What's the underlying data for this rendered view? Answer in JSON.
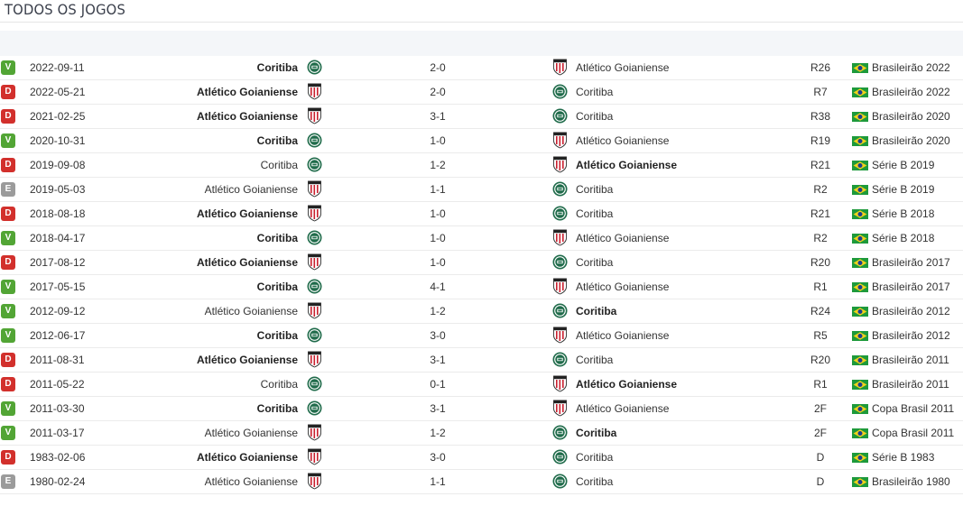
{
  "page": {
    "title": "TODOS OS JOGOS"
  },
  "colors": {
    "win": "#52a535",
    "loss": "#d2302c",
    "draw": "#9b9b9b",
    "coritiba": "#1f6b4a",
    "atletico": "#c8202f"
  },
  "matches": [
    {
      "result": "V",
      "date": "2022-09-11",
      "home": "Coritiba",
      "score": "2-0",
      "away": "Atlético Goianiense",
      "round": "R26",
      "competition": "Brasileirão 2022"
    },
    {
      "result": "D",
      "date": "2022-05-21",
      "home": "Atlético Goianiense",
      "score": "2-0",
      "away": "Coritiba",
      "round": "R7",
      "competition": "Brasileirão 2022"
    },
    {
      "result": "D",
      "date": "2021-02-25",
      "home": "Atlético Goianiense",
      "score": "3-1",
      "away": "Coritiba",
      "round": "R38",
      "competition": "Brasileirão 2020"
    },
    {
      "result": "V",
      "date": "2020-10-31",
      "home": "Coritiba",
      "score": "1-0",
      "away": "Atlético Goianiense",
      "round": "R19",
      "competition": "Brasileirão 2020"
    },
    {
      "result": "D",
      "date": "2019-09-08",
      "home": "Coritiba",
      "score": "1-2",
      "away": "Atlético Goianiense",
      "round": "R21",
      "competition": "Série B 2019"
    },
    {
      "result": "E",
      "date": "2019-05-03",
      "home": "Atlético Goianiense",
      "score": "1-1",
      "away": "Coritiba",
      "round": "R2",
      "competition": "Série B 2019"
    },
    {
      "result": "D",
      "date": "2018-08-18",
      "home": "Atlético Goianiense",
      "score": "1-0",
      "away": "Coritiba",
      "round": "R21",
      "competition": "Série B 2018"
    },
    {
      "result": "V",
      "date": "2018-04-17",
      "home": "Coritiba",
      "score": "1-0",
      "away": "Atlético Goianiense",
      "round": "R2",
      "competition": "Série B 2018"
    },
    {
      "result": "D",
      "date": "2017-08-12",
      "home": "Atlético Goianiense",
      "score": "1-0",
      "away": "Coritiba",
      "round": "R20",
      "competition": "Brasileirão 2017"
    },
    {
      "result": "V",
      "date": "2017-05-15",
      "home": "Coritiba",
      "score": "4-1",
      "away": "Atlético Goianiense",
      "round": "R1",
      "competition": "Brasileirão 2017"
    },
    {
      "result": "V",
      "date": "2012-09-12",
      "home": "Atlético Goianiense",
      "score": "1-2",
      "away": "Coritiba",
      "round": "R24",
      "competition": "Brasileirão 2012"
    },
    {
      "result": "V",
      "date": "2012-06-17",
      "home": "Coritiba",
      "score": "3-0",
      "away": "Atlético Goianiense",
      "round": "R5",
      "competition": "Brasileirão 2012"
    },
    {
      "result": "D",
      "date": "2011-08-31",
      "home": "Atlético Goianiense",
      "score": "3-1",
      "away": "Coritiba",
      "round": "R20",
      "competition": "Brasileirão 2011"
    },
    {
      "result": "D",
      "date": "2011-05-22",
      "home": "Coritiba",
      "score": "0-1",
      "away": "Atlético Goianiense",
      "round": "R1",
      "competition": "Brasileirão 2011"
    },
    {
      "result": "V",
      "date": "2011-03-30",
      "home": "Coritiba",
      "score": "3-1",
      "away": "Atlético Goianiense",
      "round": "2F",
      "competition": "Copa Brasil 2011"
    },
    {
      "result": "V",
      "date": "2011-03-17",
      "home": "Atlético Goianiense",
      "score": "1-2",
      "away": "Coritiba",
      "round": "2F",
      "competition": "Copa Brasil 2011"
    },
    {
      "result": "D",
      "date": "1983-02-06",
      "home": "Atlético Goianiense",
      "score": "3-0",
      "away": "Coritiba",
      "round": "D",
      "competition": "Série B 1983"
    },
    {
      "result": "E",
      "date": "1980-02-24",
      "home": "Atlético Goianiense",
      "score": "1-1",
      "away": "Coritiba",
      "round": "D",
      "competition": "Brasileirão 1980"
    }
  ]
}
